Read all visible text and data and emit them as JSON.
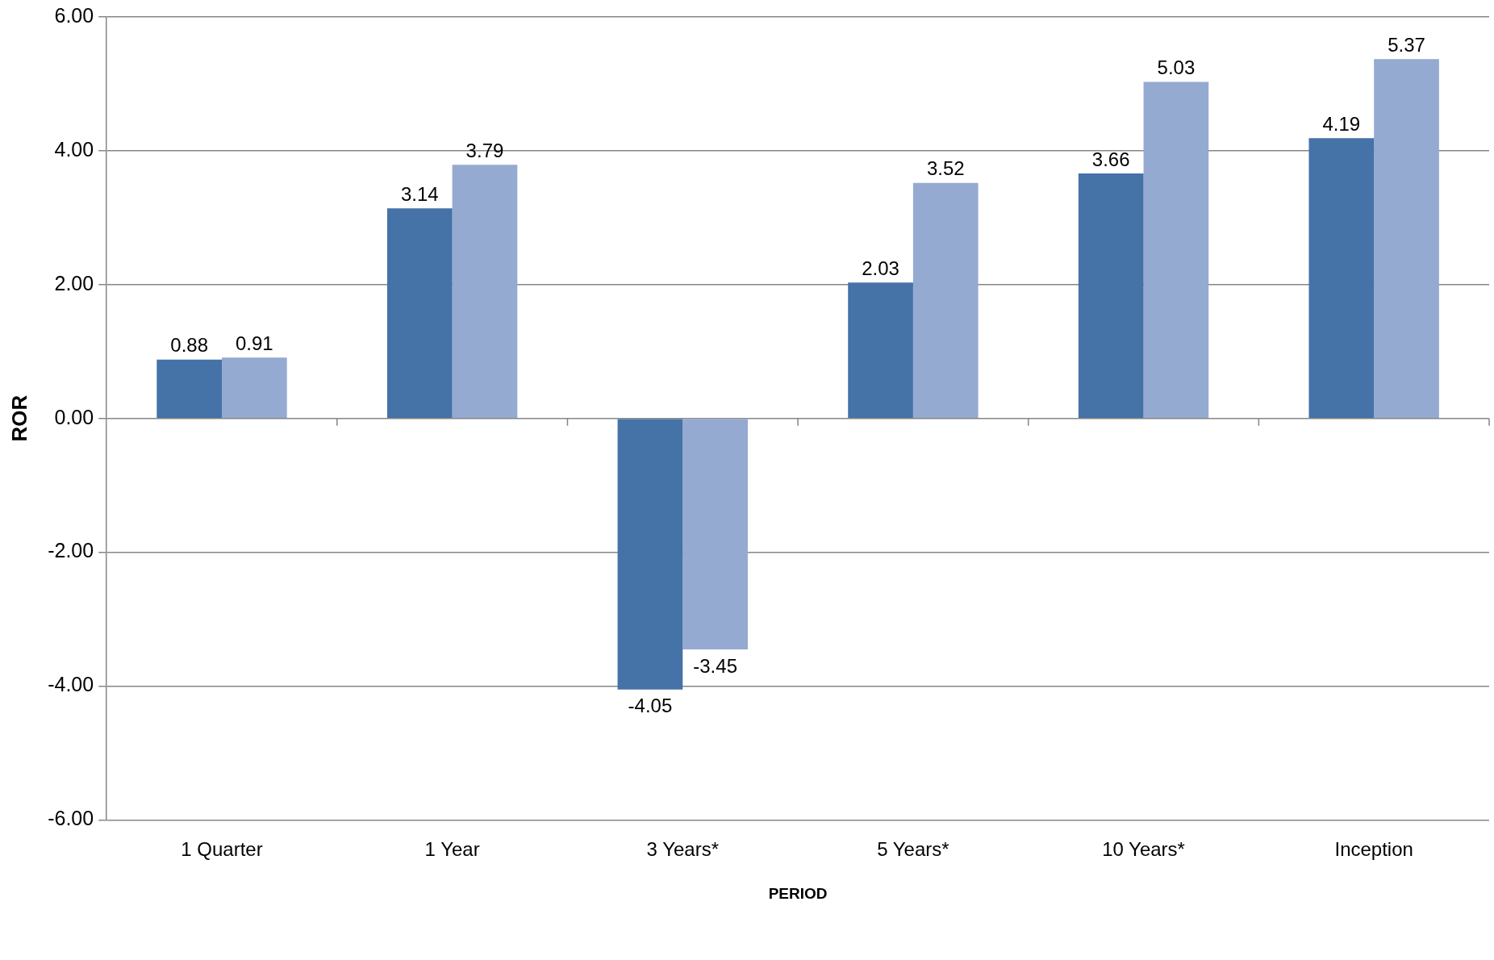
{
  "chart_data": {
    "type": "bar",
    "xlabel": "PERIOD",
    "ylabel": "ROR",
    "categories": [
      "1 Quarter",
      "1 Year",
      "3 Years*",
      "5 Years*",
      "10 Years*",
      "Inception"
    ],
    "series": [
      {
        "color": "#4572a7",
        "values": [
          0.88,
          3.14,
          -4.05,
          2.03,
          3.66,
          4.19
        ]
      },
      {
        "color": "#95aad1",
        "values": [
          0.91,
          3.79,
          -3.45,
          3.52,
          5.03,
          5.37
        ]
      }
    ],
    "ylim": [
      -6,
      6
    ],
    "yticks": [
      {
        "value": -6,
        "label": "-6.00"
      },
      {
        "value": -4,
        "label": "-4.00"
      },
      {
        "value": -2,
        "label": "-2.00"
      },
      {
        "value": 0,
        "label": "0.00"
      },
      {
        "value": 2,
        "label": "2.00"
      },
      {
        "value": 4,
        "label": "4.00"
      },
      {
        "value": 6,
        "label": "6.00"
      }
    ],
    "grid": "y",
    "data_labels": true
  }
}
